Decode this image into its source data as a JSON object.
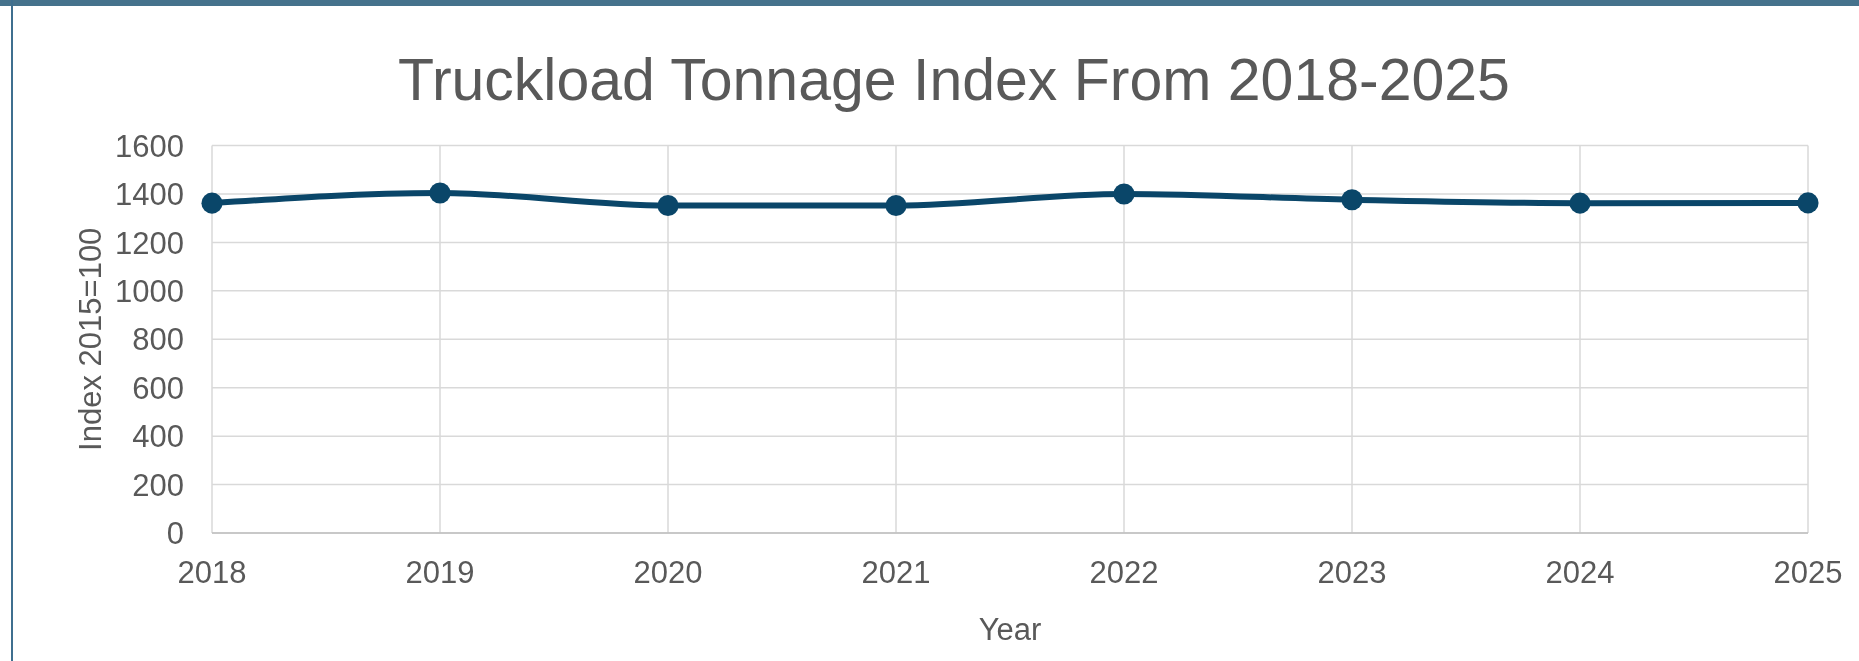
{
  "chart_data": {
    "type": "line",
    "title": "Truckload Tonnage Index From 2018-2025",
    "xlabel": "Year",
    "ylabel": "Index 2015=100",
    "categories": [
      "2018",
      "2019",
      "2020",
      "2021",
      "2022",
      "2023",
      "2024",
      "2025"
    ],
    "series": [
      {
        "color": "#0a4669",
        "values": [
          1362,
          1404,
          1352,
          1352,
          1400,
          1376,
          1362,
          1363
        ]
      }
    ],
    "ylim": [
      0,
      1600
    ],
    "yticks": [
      0,
      200,
      400,
      600,
      800,
      1000,
      1200,
      1400,
      1600
    ],
    "grid": true,
    "marker": "circle",
    "line_style": "solid"
  }
}
